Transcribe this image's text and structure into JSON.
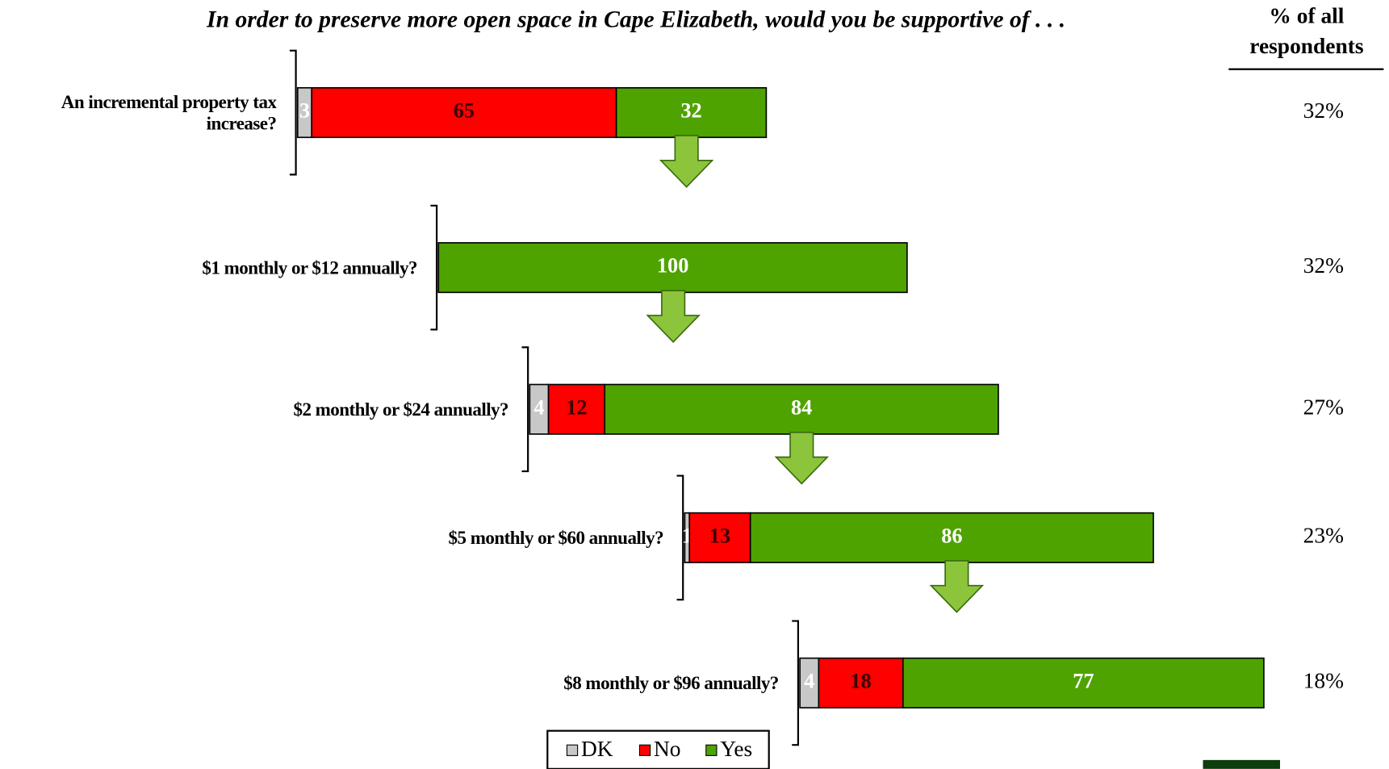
{
  "chart_data": {
    "type": "bar",
    "stacked": true,
    "title": "In order to preserve more open space in Cape Elizabeth, would you be supportive of . . .",
    "categories": [
      "An incremental property tax increase?",
      "$1 monthly or $12 annually?",
      "$2 monthly or $24 annually?",
      "$5 monthly or $60 annually?",
      "$8 monthly or $96 annually?"
    ],
    "series": [
      {
        "name": "DK",
        "color": "#c8c8c8",
        "values": [
          3,
          null,
          4,
          1,
          4
        ]
      },
      {
        "name": "No",
        "color": "#ff0000",
        "values": [
          65,
          null,
          12,
          13,
          18
        ]
      },
      {
        "name": "Yes",
        "color": "#4fa300",
        "values": [
          32,
          100,
          84,
          86,
          77
        ]
      }
    ],
    "respondents": {
      "title": "% of all respondents",
      "values": [
        32,
        32,
        27,
        23,
        18
      ],
      "value_labels": [
        "32%",
        "32%",
        "27%",
        "23%",
        "18%"
      ]
    },
    "legend": "bottom"
  }
}
